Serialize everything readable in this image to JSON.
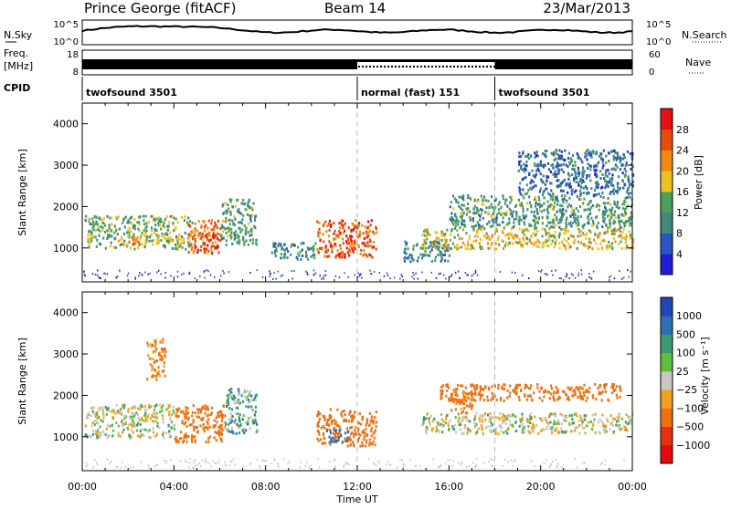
{
  "header": {
    "station": "Prince George (fitACF)",
    "beam": "Beam 14",
    "date": "23/Mar/2013"
  },
  "strips": {
    "nsky_label": "N.Sky",
    "nsky_ticks": [
      "10^5",
      "10^0"
    ],
    "nsearch_label": "N.Search",
    "nsearch_ticks": [
      "10^5",
      "10^0"
    ],
    "freq_label_1": "Freq.",
    "freq_label_2": "[MHz]",
    "freq_ticks": [
      "18",
      "8"
    ],
    "nave_label": "Nave",
    "nave_ticks": [
      "60",
      "0"
    ],
    "cpid_label": "CPID"
  },
  "cpid_segments": [
    {
      "label": "twofsound 3501",
      "start_hr": 0,
      "end_hr": 12,
      "mode": "solid"
    },
    {
      "label": "normal (fast) 151",
      "start_hr": 12,
      "end_hr": 18,
      "mode": "dotted"
    },
    {
      "label": "twofsound 3501",
      "start_hr": 18,
      "end_hr": 24,
      "mode": "solid"
    }
  ],
  "panels": {
    "power": {
      "ylabel": "Slant Range [km]",
      "yticks": [
        "1000",
        "2000",
        "3000",
        "4000"
      ],
      "colorbar_label": "Power [dB]",
      "colorbar_ticks": [
        "4",
        "8",
        "12",
        "16",
        "20",
        "24",
        "28"
      ],
      "colors": [
        "#1f1fd8",
        "#2b55c0",
        "#3f8a7a",
        "#4aa05a",
        "#f0c020",
        "#f08a10",
        "#e84a10",
        "#e81010"
      ]
    },
    "velocity": {
      "ylabel": "Slant Range [km]",
      "yticks": [
        "1000",
        "2000",
        "3000",
        "4000"
      ],
      "colorbar_label": "Velocity [m s⁻¹]",
      "colorbar_ticks": [
        "1000",
        "500",
        "100",
        "25",
        "−25",
        "−100",
        "−500",
        "−1000"
      ],
      "colors": [
        "#2046b8",
        "#2e6fb4",
        "#3c9a70",
        "#5ec03a",
        "#c8c8c0",
        "#f0a020",
        "#f07010",
        "#e83010",
        "#e80808"
      ]
    }
  },
  "xaxis": {
    "label": "Time UT",
    "ticks": [
      "00:00",
      "04:00",
      "08:00",
      "12:00",
      "16:00",
      "20:00",
      "00:00"
    ]
  },
  "chart_data": {
    "type": "heatmap",
    "title": "Prince George (fitACF)",
    "subtitle": "Beam 14",
    "date": "23/Mar/2013",
    "xlabel": "Time UT",
    "x_unit": "hours UT",
    "xlim": [
      0,
      24
    ],
    "ylabel": "Slant Range [km]",
    "ylim": [
      180,
      4500
    ],
    "grid": true,
    "power_colorbar": {
      "label": "Power [dB]",
      "range": [
        0,
        30
      ]
    },
    "velocity_colorbar": {
      "label": "Velocity [m s⁻¹]",
      "range": [
        -1000,
        1000
      ]
    },
    "mode_changes_hr": [
      12,
      18
    ],
    "power_patches": [
      {
        "t0": 0.1,
        "t1": 4.8,
        "r0": 1000,
        "r1": 1800,
        "level": 14
      },
      {
        "t0": 1.5,
        "t1": 2.5,
        "r0": 1100,
        "r1": 1300,
        "level": 22
      },
      {
        "t0": 4.6,
        "t1": 6.0,
        "r0": 900,
        "r1": 1700,
        "level": 24
      },
      {
        "t0": 5.2,
        "t1": 5.9,
        "r0": 1000,
        "r1": 1400,
        "level": 28
      },
      {
        "t0": 6.0,
        "t1": 7.6,
        "r0": 1100,
        "r1": 2200,
        "level": 12
      },
      {
        "t0": 8.2,
        "t1": 10.2,
        "r0": 750,
        "r1": 1150,
        "level": 10
      },
      {
        "t0": 10.2,
        "t1": 12.8,
        "r0": 800,
        "r1": 1700,
        "level": 26
      },
      {
        "t0": 14.0,
        "t1": 16.0,
        "r0": 700,
        "r1": 1200,
        "level": 10
      },
      {
        "t0": 14.8,
        "t1": 24.0,
        "r0": 1000,
        "r1": 1500,
        "level": 18
      },
      {
        "t0": 16.0,
        "t1": 24.0,
        "r0": 1500,
        "r1": 2300,
        "level": 12
      },
      {
        "t0": 19.0,
        "t1": 24.0,
        "r0": 2300,
        "r1": 3400,
        "level": 8
      }
    ],
    "velocity_patches": [
      {
        "t0": 0.1,
        "t1": 4.0,
        "r0": 1000,
        "r1": 1800,
        "level": 0
      },
      {
        "t0": 2.8,
        "t1": 3.6,
        "r0": 2400,
        "r1": 3400,
        "level": -100
      },
      {
        "t0": 4.0,
        "t1": 6.2,
        "r0": 900,
        "r1": 1800,
        "level": -300
      },
      {
        "t0": 6.2,
        "t1": 7.6,
        "r0": 1100,
        "r1": 2200,
        "level": 60
      },
      {
        "t0": 10.2,
        "t1": 12.8,
        "r0": 800,
        "r1": 1700,
        "level": -200
      },
      {
        "t0": 10.6,
        "t1": 11.6,
        "r0": 900,
        "r1": 1200,
        "level": 200
      },
      {
        "t0": 14.8,
        "t1": 24.0,
        "r0": 1100,
        "r1": 1600,
        "level": 0
      },
      {
        "t0": 15.5,
        "t1": 23.5,
        "r0": 1900,
        "r1": 2300,
        "level": -300
      },
      {
        "t0": 16.0,
        "t1": 17.0,
        "r0": 1600,
        "r1": 2200,
        "level": -150
      }
    ]
  }
}
